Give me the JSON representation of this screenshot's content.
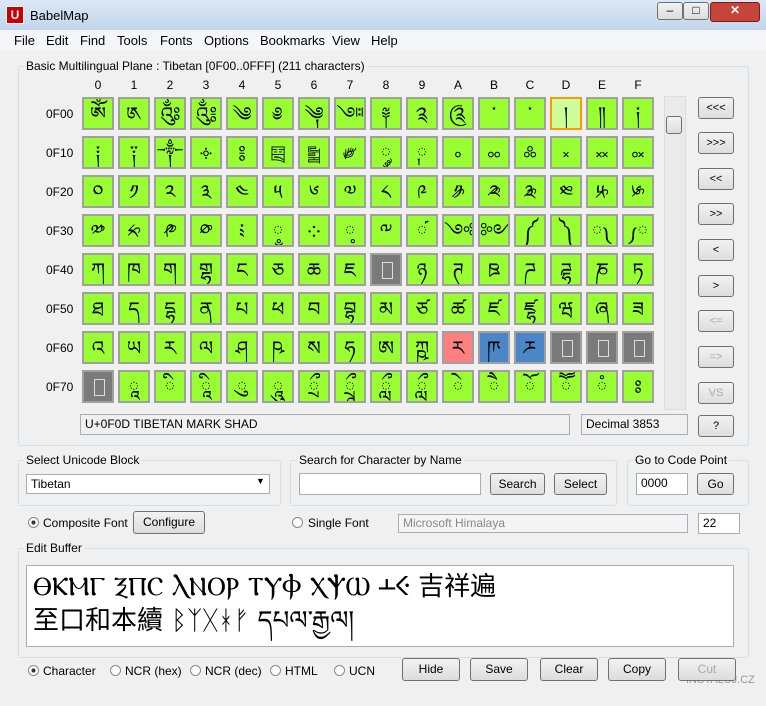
{
  "window": {
    "title": "BabelMap",
    "menu": [
      "File",
      "Edit",
      "Find",
      "Tools",
      "Fonts",
      "Options",
      "Bookmarks",
      "View",
      "Help"
    ]
  },
  "plane": {
    "label": "Basic Multilingual Plane : Tibetan [0F00..0FFF] (211 characters)",
    "columns": [
      "0",
      "1",
      "2",
      "3",
      "4",
      "5",
      "6",
      "7",
      "8",
      "9",
      "A",
      "B",
      "C",
      "D",
      "E",
      "F"
    ],
    "rows": [
      {
        "label": "0F00",
        "cells": [
          "ༀ",
          "༁",
          "༂",
          "༃",
          "༄",
          "༅",
          "༆",
          "༇",
          "༈",
          "༉",
          "༊",
          "་",
          "༌",
          "།",
          "༎",
          "༏"
        ]
      },
      {
        "label": "0F10",
        "cells": [
          "༐",
          "༑",
          "༒",
          "༓",
          "༔",
          "༕",
          "༖",
          "༗",
          "༘",
          "༙",
          "༚",
          "༛",
          "༜",
          "༝",
          "༞",
          "༟"
        ]
      },
      {
        "label": "0F20",
        "cells": [
          "༠",
          "༡",
          "༢",
          "༣",
          "༤",
          "༥",
          "༦",
          "༧",
          "༨",
          "༩",
          "༪",
          "༫",
          "༬",
          "༭",
          "༮",
          "༯"
        ]
      },
      {
        "label": "0F30",
        "cells": [
          "༰",
          "༱",
          "༲",
          "༳",
          "༴",
          "༵",
          "༶",
          "༷",
          "༸",
          "༹",
          "༺",
          "༻",
          "༼",
          "༽",
          "༾",
          "༿"
        ]
      },
      {
        "label": "0F40",
        "cells": [
          "ཀ",
          "ཁ",
          "ག",
          "གྷ",
          "ང",
          "ཅ",
          "ཆ",
          "ཇ",
          null,
          "ཉ",
          "ཊ",
          "ཋ",
          "ཌ",
          "ཌྷ",
          "ཎ",
          "ཏ"
        ]
      },
      {
        "label": "0F50",
        "cells": [
          "ཐ",
          "ད",
          "དྷ",
          "ན",
          "པ",
          "ཕ",
          "བ",
          "བྷ",
          "མ",
          "ཙ",
          "ཚ",
          "ཛ",
          "ཛྷ",
          "ཝ",
          "ཞ",
          "ཟ"
        ]
      },
      {
        "label": "0F60",
        "cells": [
          "འ",
          "ཡ",
          "ར",
          "ལ",
          "ཤ",
          "ཥ",
          "ས",
          "ཧ",
          "ཨ",
          "ཀྵ",
          "ཪ",
          "ཫ",
          "ཬ",
          null,
          null,
          null
        ]
      },
      {
        "label": "0F70",
        "cells": [
          null,
          "ཱ",
          "ི",
          "ཱི",
          "ུ",
          "ཱུ",
          "ྲྀ",
          "ཷ",
          "ླྀ",
          "ཹ",
          "ེ",
          "ཻ",
          "ོ",
          "ཽ",
          "ཾ",
          "ཿ"
        ]
      }
    ],
    "char_name": "U+0F0D TIBETAN MARK SHAD",
    "decimal": "Decimal 3853",
    "nav": [
      "<<<",
      ">>>",
      "<<",
      ">>",
      "<",
      ">",
      "<=",
      "=>",
      "VS",
      "?"
    ]
  },
  "block": {
    "label": "Select Unicode Block",
    "value": "Tibetan"
  },
  "search": {
    "label": "Search for Character by Name",
    "buttons": [
      "Search",
      "Select"
    ]
  },
  "goto": {
    "label": "Go to Code Point",
    "value": "0000",
    "button": "Go"
  },
  "font": {
    "composite": "Composite Font",
    "configure": "Configure",
    "single": "Single Font",
    "name": "Microsoft Himalaya",
    "size": "22"
  },
  "buffer": {
    "label": "Edit Buffer",
    "lines": [
      "ⲐⲔⲘⲄ ⲜⲠⲤ ⲖⲚⲞⲢ ⲦⲨⲪ ⲬⲮⲰ ⲲⲴ 吉祥遍",
      "至口和本續 ᛒᛉᚷᚼᚠ དཔལ་རྒྱལ།"
    ]
  },
  "encoding": [
    "Character",
    "NCR (hex)",
    "NCR (dec)",
    "HTML",
    "UCN"
  ],
  "actions": [
    "Hide",
    "Save",
    "Clear",
    "Copy",
    "Cut"
  ],
  "watermark": "INSTALUJ.CZ"
}
